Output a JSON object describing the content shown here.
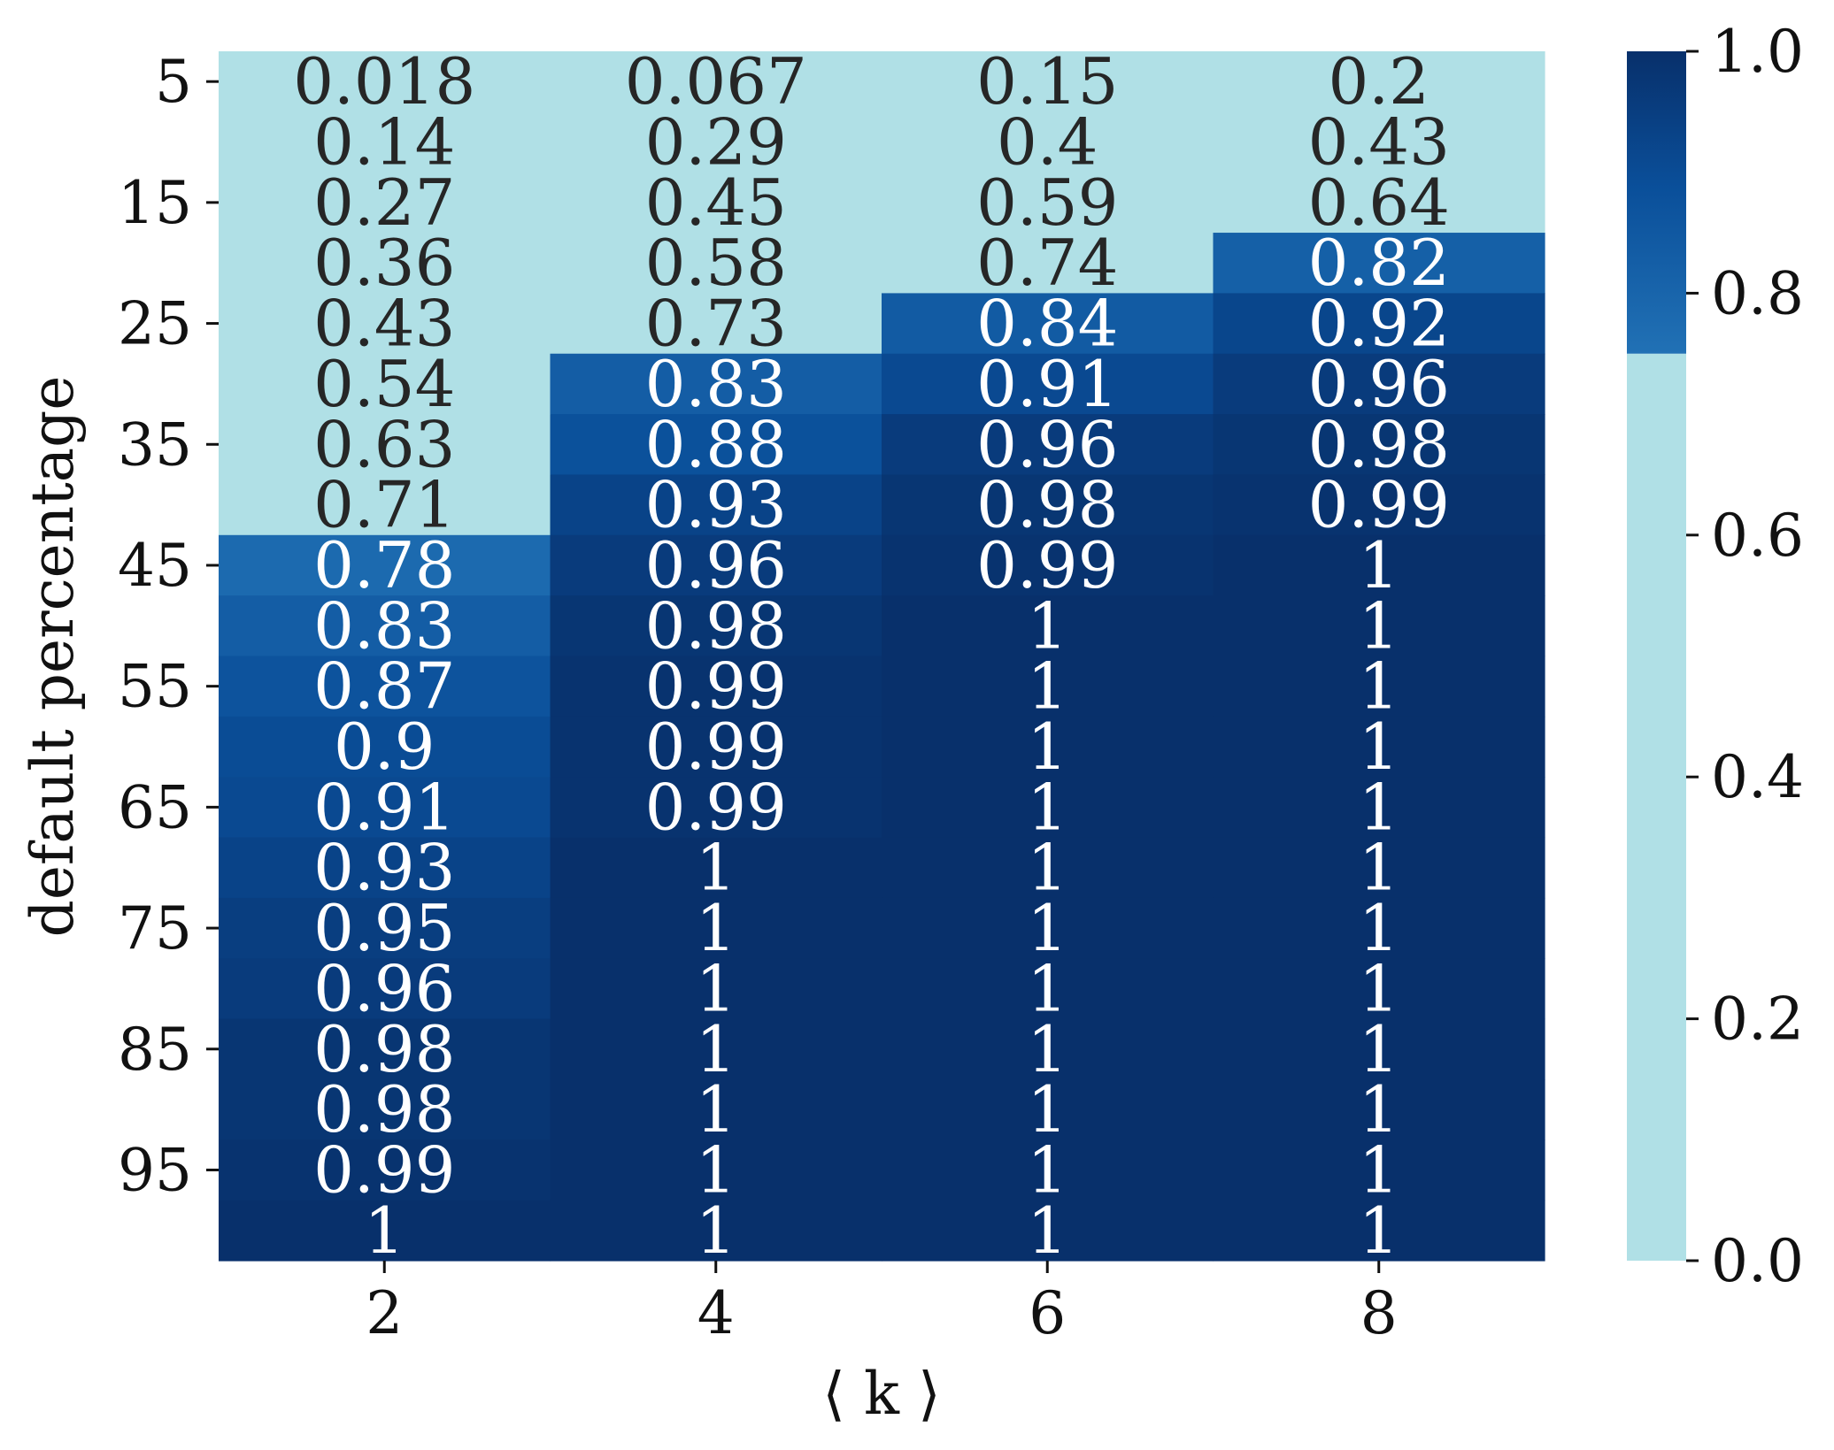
{
  "chart_data": {
    "type": "heatmap",
    "xlabel": "⟨ k ⟩",
    "ylabel": "default percentage",
    "x": [
      2,
      4,
      6,
      8
    ],
    "x_tick_labels": [
      "2",
      "4",
      "6",
      "8"
    ],
    "y": [
      5,
      10,
      15,
      20,
      25,
      30,
      35,
      40,
      45,
      50,
      55,
      60,
      65,
      70,
      75,
      80,
      85,
      90,
      95,
      100
    ],
    "y_tick_labels": [
      "5",
      "15",
      "25",
      "35",
      "45",
      "55",
      "65",
      "75",
      "85",
      "95"
    ],
    "values": [
      [
        0.018,
        0.067,
        0.15,
        0.2
      ],
      [
        0.14,
        0.29,
        0.4,
        0.43
      ],
      [
        0.27,
        0.45,
        0.59,
        0.64
      ],
      [
        0.36,
        0.58,
        0.74,
        0.82
      ],
      [
        0.43,
        0.73,
        0.84,
        0.92
      ],
      [
        0.54,
        0.83,
        0.91,
        0.96
      ],
      [
        0.63,
        0.88,
        0.96,
        0.98
      ],
      [
        0.71,
        0.93,
        0.98,
        0.99
      ],
      [
        0.78,
        0.96,
        0.99,
        1
      ],
      [
        0.83,
        0.98,
        1,
        1
      ],
      [
        0.87,
        0.99,
        1,
        1
      ],
      [
        0.9,
        0.99,
        1,
        1
      ],
      [
        0.91,
        0.99,
        1,
        1
      ],
      [
        0.93,
        1,
        1,
        1
      ],
      [
        0.95,
        1,
        1,
        1
      ],
      [
        0.96,
        1,
        1,
        1
      ],
      [
        0.98,
        1,
        1,
        1
      ],
      [
        0.98,
        1,
        1,
        1
      ],
      [
        0.99,
        1,
        1,
        1
      ],
      [
        1,
        1,
        1,
        1
      ]
    ],
    "value_labels": [
      [
        "0.018",
        "0.067",
        "0.15",
        "0.2"
      ],
      [
        "0.14",
        "0.29",
        "0.4",
        "0.43"
      ],
      [
        "0.27",
        "0.45",
        "0.59",
        "0.64"
      ],
      [
        "0.36",
        "0.58",
        "0.74",
        "0.82"
      ],
      [
        "0.43",
        "0.73",
        "0.84",
        "0.92"
      ],
      [
        "0.54",
        "0.83",
        "0.91",
        "0.96"
      ],
      [
        "0.63",
        "0.88",
        "0.96",
        "0.98"
      ],
      [
        "0.71",
        "0.93",
        "0.98",
        "0.99"
      ],
      [
        "0.78",
        "0.96",
        "0.99",
        "1"
      ],
      [
        "0.83",
        "0.98",
        "1",
        "1"
      ],
      [
        "0.87",
        "0.99",
        "1",
        "1"
      ],
      [
        "0.9",
        "0.99",
        "1",
        "1"
      ],
      [
        "0.91",
        "0.99",
        "1",
        "1"
      ],
      [
        "0.93",
        "1",
        "1",
        "1"
      ],
      [
        "0.95",
        "1",
        "1",
        "1"
      ],
      [
        "0.96",
        "1",
        "1",
        "1"
      ],
      [
        "0.98",
        "1",
        "1",
        "1"
      ],
      [
        "0.98",
        "1",
        "1",
        "1"
      ],
      [
        "0.99",
        "1",
        "1",
        "1"
      ],
      [
        "1",
        "1",
        "1",
        "1"
      ]
    ],
    "colorbar": {
      "range": [
        0.0,
        1.0
      ],
      "ticks": [
        0.0,
        0.2,
        0.4,
        0.6,
        0.8,
        1.0
      ],
      "tick_labels": [
        "0.0",
        "0.2",
        "0.4",
        "0.6",
        "0.8",
        "1.0"
      ],
      "threshold": 0.75,
      "below_threshold_color": "#b0e0e6",
      "gradient_colors": [
        "#2171b5",
        "#0a4f9a",
        "#08306b"
      ]
    },
    "text_colors": {
      "light_cell": "#262626",
      "dark_cell": "#ffffff"
    }
  }
}
